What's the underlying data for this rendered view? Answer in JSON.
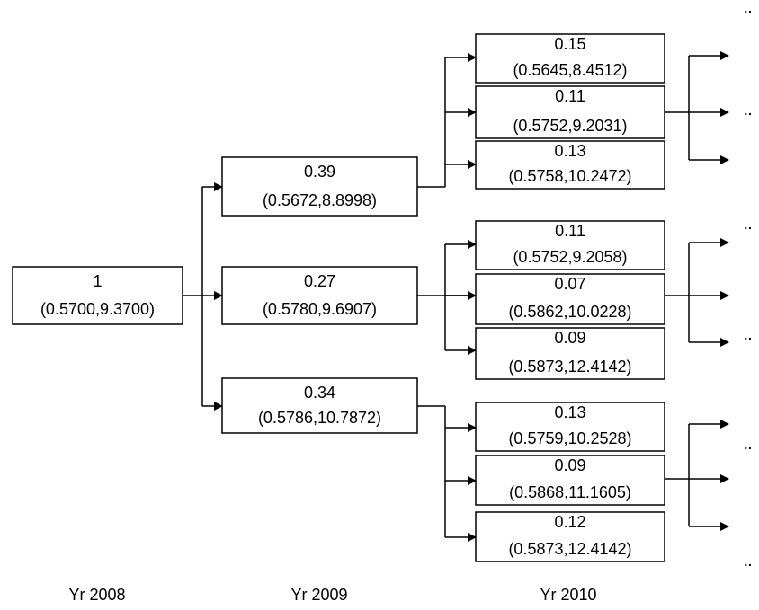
{
  "columns": [
    "Yr 2008",
    "Yr 2009",
    "Yr 2010"
  ],
  "nodes": [
    {
      "value": "1",
      "coords": "(0.5700,9.3700)"
    },
    {
      "value": "0.39",
      "coords": "(0.5672,8.8998)"
    },
    {
      "value": "0.27",
      "coords": "(0.5780,9.6907)"
    },
    {
      "value": "0.34",
      "coords": "(0.5786,10.7872)"
    },
    {
      "value": "0.15",
      "coords": "(0.5645,8.4512)"
    },
    {
      "value": "0.11",
      "coords": "(0.5752,9.2031)"
    },
    {
      "value": "0.13",
      "coords": "(0.5758,10.2472)"
    },
    {
      "value": "0.11",
      "coords": "(0.5752,9.2058)"
    },
    {
      "value": "0.07",
      "coords": "(0.5862,10.0228)"
    },
    {
      "value": "0.09",
      "coords": "(0.5873,12.4142)"
    },
    {
      "value": "0.13",
      "coords": "(0.5759,10.2528)"
    },
    {
      "value": "0.09",
      "coords": "(0.5868,11.1605)"
    },
    {
      "value": "0.12",
      "coords": "(0.5873,12.4142)"
    }
  ],
  "ellipses": [
    "··",
    "··",
    "··",
    "··",
    "··",
    "··"
  ]
}
